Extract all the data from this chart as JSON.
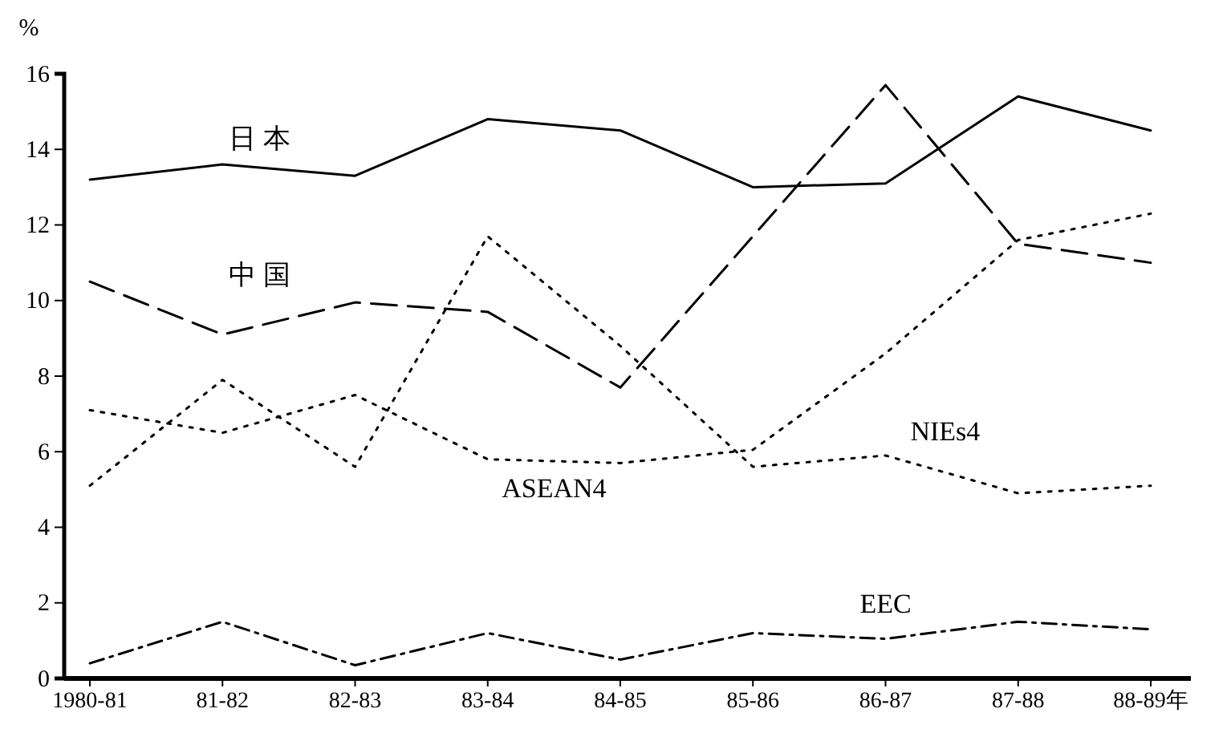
{
  "chart_data": {
    "type": "line",
    "ylabel": "%",
    "categories": [
      "1980-81",
      "81-82",
      "82-83",
      "83-84",
      "84-85",
      "85-86",
      "86-87",
      "87-88",
      "88-89年"
    ],
    "ylim": [
      0,
      16
    ],
    "yticks": [
      0,
      2,
      4,
      6,
      8,
      10,
      12,
      14,
      16
    ],
    "grid": false,
    "legend": false,
    "marker": "none",
    "series": [
      {
        "name": "日 本",
        "color": "#000000",
        "line_style": "solid",
        "values": [
          13.2,
          13.6,
          13.3,
          14.8,
          14.5,
          13.0,
          13.1,
          15.4,
          14.5
        ]
      },
      {
        "name": "中 国",
        "color": "#000000",
        "line_style": "dashed",
        "values": [
          10.5,
          9.1,
          9.95,
          9.7,
          7.7,
          11.7,
          15.7,
          11.5,
          11.0
        ]
      },
      {
        "name": "ASEAN4",
        "color": "#000000",
        "line_style": "dotted",
        "values": [
          7.1,
          6.5,
          7.5,
          5.8,
          5.7,
          6.05,
          8.6,
          11.6,
          12.3
        ]
      },
      {
        "name": "NIEs4",
        "color": "#000000",
        "line_style": "dotted",
        "values": [
          5.1,
          7.9,
          5.6,
          11.7,
          8.8,
          5.6,
          5.9,
          4.9,
          5.1
        ]
      },
      {
        "name": "EEC",
        "color": "#000000",
        "line_style": "dashdot",
        "values": [
          0.4,
          1.5,
          0.35,
          1.2,
          0.5,
          1.2,
          1.05,
          1.5,
          1.3
        ]
      }
    ]
  }
}
